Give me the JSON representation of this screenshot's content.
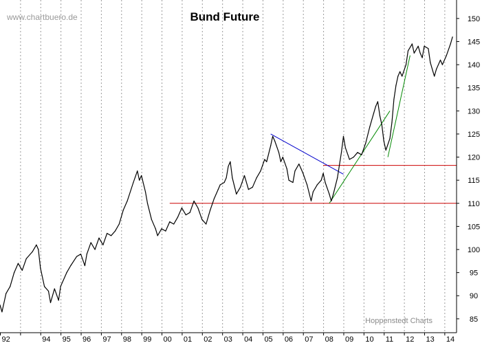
{
  "chart_data": {
    "type": "line",
    "title": "Bund Future",
    "watermark": "www.chartbuero.de",
    "credit": "Hoppenstedt Charts",
    "ylim": [
      82,
      154
    ],
    "y_ticks": [
      85,
      90,
      95,
      100,
      105,
      110,
      115,
      120,
      125,
      130,
      135,
      140,
      145,
      150
    ],
    "xlim": [
      1992.0,
      2014.6
    ],
    "x_ticks": [
      {
        "x": 1992.0,
        "label": "92"
      },
      {
        "x": 1993.0,
        "label": ""
      },
      {
        "x": 1994.0,
        "label": "94"
      },
      {
        "x": 1995.0,
        "label": "95"
      },
      {
        "x": 1996.0,
        "label": "96"
      },
      {
        "x": 1997.0,
        "label": "97"
      },
      {
        "x": 1998.0,
        "label": "98"
      },
      {
        "x": 1999.0,
        "label": "99"
      },
      {
        "x": 2000.0,
        "label": "00"
      },
      {
        "x": 2001.0,
        "label": "01"
      },
      {
        "x": 2002.0,
        "label": "02"
      },
      {
        "x": 2003.0,
        "label": "03"
      },
      {
        "x": 2004.0,
        "label": "04"
      },
      {
        "x": 2005.0,
        "label": "05"
      },
      {
        "x": 2006.0,
        "label": "06"
      },
      {
        "x": 2007.0,
        "label": "07"
      },
      {
        "x": 2008.0,
        "label": "08"
      },
      {
        "x": 2009.0,
        "label": "09"
      },
      {
        "x": 2010.0,
        "label": "10"
      },
      {
        "x": 2011.0,
        "label": "11"
      },
      {
        "x": 2012.0,
        "label": "12"
      },
      {
        "x": 2013.0,
        "label": "13"
      },
      {
        "x": 2014.0,
        "label": "14"
      }
    ],
    "series": [
      {
        "color": "#000000",
        "points": [
          [
            1992.0,
            88.0
          ],
          [
            1992.1,
            86.5
          ],
          [
            1992.3,
            90.5
          ],
          [
            1992.5,
            92.0
          ],
          [
            1992.7,
            95.0
          ],
          [
            1992.9,
            97.0
          ],
          [
            1993.1,
            95.5
          ],
          [
            1993.3,
            98.0
          ],
          [
            1993.6,
            99.5
          ],
          [
            1993.8,
            101.0
          ],
          [
            1993.9,
            100.0
          ],
          [
            1994.0,
            96.0
          ],
          [
            1994.2,
            92.0
          ],
          [
            1994.4,
            91.0
          ],
          [
            1994.5,
            88.5
          ],
          [
            1994.7,
            91.5
          ],
          [
            1994.9,
            89.0
          ],
          [
            1995.0,
            92.0
          ],
          [
            1995.3,
            95.0
          ],
          [
            1995.5,
            96.5
          ],
          [
            1995.8,
            98.5
          ],
          [
            1996.0,
            99.0
          ],
          [
            1996.2,
            96.5
          ],
          [
            1996.3,
            99.0
          ],
          [
            1996.5,
            101.5
          ],
          [
            1996.7,
            100.0
          ],
          [
            1996.9,
            102.5
          ],
          [
            1997.1,
            101.0
          ],
          [
            1997.3,
            103.5
          ],
          [
            1997.5,
            103.0
          ],
          [
            1997.7,
            104.0
          ],
          [
            1997.9,
            105.5
          ],
          [
            1998.1,
            108.5
          ],
          [
            1998.3,
            110.5
          ],
          [
            1998.6,
            114.5
          ],
          [
            1998.8,
            117.0
          ],
          [
            1998.9,
            115.0
          ],
          [
            1999.0,
            116.0
          ],
          [
            1999.2,
            112.5
          ],
          [
            1999.3,
            110.0
          ],
          [
            1999.5,
            106.5
          ],
          [
            1999.7,
            104.5
          ],
          [
            1999.8,
            103.0
          ],
          [
            2000.0,
            104.5
          ],
          [
            2000.2,
            104.0
          ],
          [
            2000.4,
            106.0
          ],
          [
            2000.6,
            105.5
          ],
          [
            2000.8,
            107.0
          ],
          [
            2001.0,
            109.0
          ],
          [
            2001.2,
            107.5
          ],
          [
            2001.4,
            108.0
          ],
          [
            2001.6,
            110.5
          ],
          [
            2001.8,
            109.0
          ],
          [
            2002.0,
            106.5
          ],
          [
            2002.2,
            105.5
          ],
          [
            2002.4,
            108.5
          ],
          [
            2002.6,
            111.0
          ],
          [
            2002.8,
            113.0
          ],
          [
            2002.9,
            114.0
          ],
          [
            2003.1,
            114.5
          ],
          [
            2003.2,
            115.5
          ],
          [
            2003.3,
            118.0
          ],
          [
            2003.4,
            119.0
          ],
          [
            2003.5,
            115.5
          ],
          [
            2003.7,
            112.0
          ],
          [
            2003.9,
            113.5
          ],
          [
            2004.1,
            116.0
          ],
          [
            2004.3,
            113.0
          ],
          [
            2004.5,
            113.5
          ],
          [
            2004.7,
            115.5
          ],
          [
            2004.9,
            117.0
          ],
          [
            2005.1,
            119.5
          ],
          [
            2005.2,
            119.0
          ],
          [
            2005.4,
            122.5
          ],
          [
            2005.5,
            124.5
          ],
          [
            2005.6,
            123.5
          ],
          [
            2005.8,
            121.0
          ],
          [
            2005.9,
            119.0
          ],
          [
            2006.0,
            120.0
          ],
          [
            2006.2,
            117.5
          ],
          [
            2006.3,
            115.0
          ],
          [
            2006.5,
            114.5
          ],
          [
            2006.6,
            117.0
          ],
          [
            2006.8,
            118.5
          ],
          [
            2006.9,
            117.5
          ],
          [
            2007.0,
            116.5
          ],
          [
            2007.2,
            114.0
          ],
          [
            2007.4,
            110.5
          ],
          [
            2007.5,
            112.5
          ],
          [
            2007.7,
            114.0
          ],
          [
            2007.9,
            115.0
          ],
          [
            2008.0,
            116.5
          ],
          [
            2008.1,
            114.5
          ],
          [
            2008.3,
            112.0
          ],
          [
            2008.4,
            110.5
          ],
          [
            2008.5,
            112.0
          ],
          [
            2008.7,
            115.5
          ],
          [
            2008.9,
            121.0
          ],
          [
            2009.0,
            124.5
          ],
          [
            2009.1,
            122.0
          ],
          [
            2009.3,
            119.5
          ],
          [
            2009.5,
            120.0
          ],
          [
            2009.7,
            121.0
          ],
          [
            2009.9,
            120.5
          ],
          [
            2010.1,
            123.0
          ],
          [
            2010.3,
            126.5
          ],
          [
            2010.5,
            129.5
          ],
          [
            2010.6,
            131.0
          ],
          [
            2010.7,
            132.0
          ],
          [
            2010.8,
            129.0
          ],
          [
            2010.9,
            127.0
          ],
          [
            2011.0,
            123.5
          ],
          [
            2011.1,
            121.5
          ],
          [
            2011.3,
            124.0
          ],
          [
            2011.4,
            127.5
          ],
          [
            2011.5,
            132.5
          ],
          [
            2011.6,
            135.5
          ],
          [
            2011.7,
            137.5
          ],
          [
            2011.8,
            138.5
          ],
          [
            2011.9,
            137.5
          ],
          [
            2012.1,
            140.0
          ],
          [
            2012.2,
            143.0
          ],
          [
            2012.4,
            144.5
          ],
          [
            2012.5,
            142.5
          ],
          [
            2012.7,
            144.0
          ],
          [
            2012.8,
            142.5
          ],
          [
            2012.9,
            141.5
          ],
          [
            2013.0,
            144.0
          ],
          [
            2013.2,
            143.5
          ],
          [
            2013.3,
            140.5
          ],
          [
            2013.5,
            137.5
          ],
          [
            2013.6,
            139.0
          ],
          [
            2013.8,
            141.0
          ],
          [
            2013.9,
            140.0
          ],
          [
            2014.1,
            142.0
          ],
          [
            2014.3,
            144.5
          ],
          [
            2014.4,
            146.0
          ]
        ]
      }
    ],
    "trend_lines": [
      {
        "color": "#cc0000",
        "from": [
          2000.4,
          110.0
        ],
        "to": [
          2014.6,
          110.0
        ]
      },
      {
        "color": "#cc0000",
        "from": [
          2008.0,
          118.2
        ],
        "to": [
          2014.6,
          118.2
        ]
      },
      {
        "color": "#0000cc",
        "from": [
          2005.4,
          125.0
        ],
        "to": [
          2009.0,
          116.3
        ]
      },
      {
        "color": "#008800",
        "from": [
          2008.3,
          110.0
        ],
        "to": [
          2011.3,
          130.0
        ]
      },
      {
        "color": "#008800",
        "from": [
          2011.2,
          120.0
        ],
        "to": [
          2012.3,
          142.0
        ]
      }
    ]
  }
}
